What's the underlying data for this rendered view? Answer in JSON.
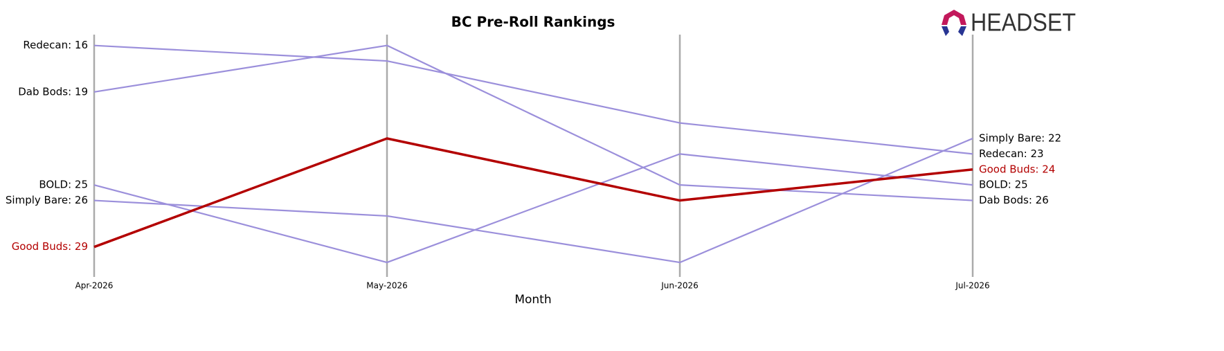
{
  "chart_data": {
    "type": "bump",
    "title": "BC Pre-Roll Rankings",
    "xlabel": "Month",
    "categories": [
      "Apr-2026",
      "May-2026",
      "Jun-2026",
      "Jul-2026"
    ],
    "ylim": [
      15.3,
      30.8
    ],
    "invert_y": true,
    "series": [
      {
        "name": "Redecan",
        "color": "#9b8fdb",
        "values": [
          16,
          17,
          21,
          23
        ],
        "value_labels": [
          "Redecan: 16",
          null,
          null,
          "Redecan: 23"
        ]
      },
      {
        "name": "Dab Bods",
        "color": "#9b8fdb",
        "values": [
          19,
          16,
          25,
          26
        ],
        "value_labels": [
          "Dab Bods: 19",
          null,
          null,
          "Dab Bods: 26"
        ]
      },
      {
        "name": "BOLD",
        "color": "#9b8fdb",
        "values": [
          25,
          30,
          23,
          25
        ],
        "value_labels": [
          "BOLD: 25",
          null,
          null,
          "BOLD: 25"
        ]
      },
      {
        "name": "Simply Bare",
        "color": "#9b8fdb",
        "values": [
          26,
          27,
          30,
          22
        ],
        "value_labels": [
          "Simply Bare: 26",
          null,
          null,
          "Simply Bare: 22"
        ]
      },
      {
        "name": "Good Buds",
        "color": "#b30000",
        "highlight": true,
        "values": [
          29,
          22,
          26,
          24
        ],
        "value_labels": [
          "Good Buds: 29",
          null,
          null,
          "Good Buds: 24"
        ]
      }
    ]
  },
  "logo": "HEADSET"
}
